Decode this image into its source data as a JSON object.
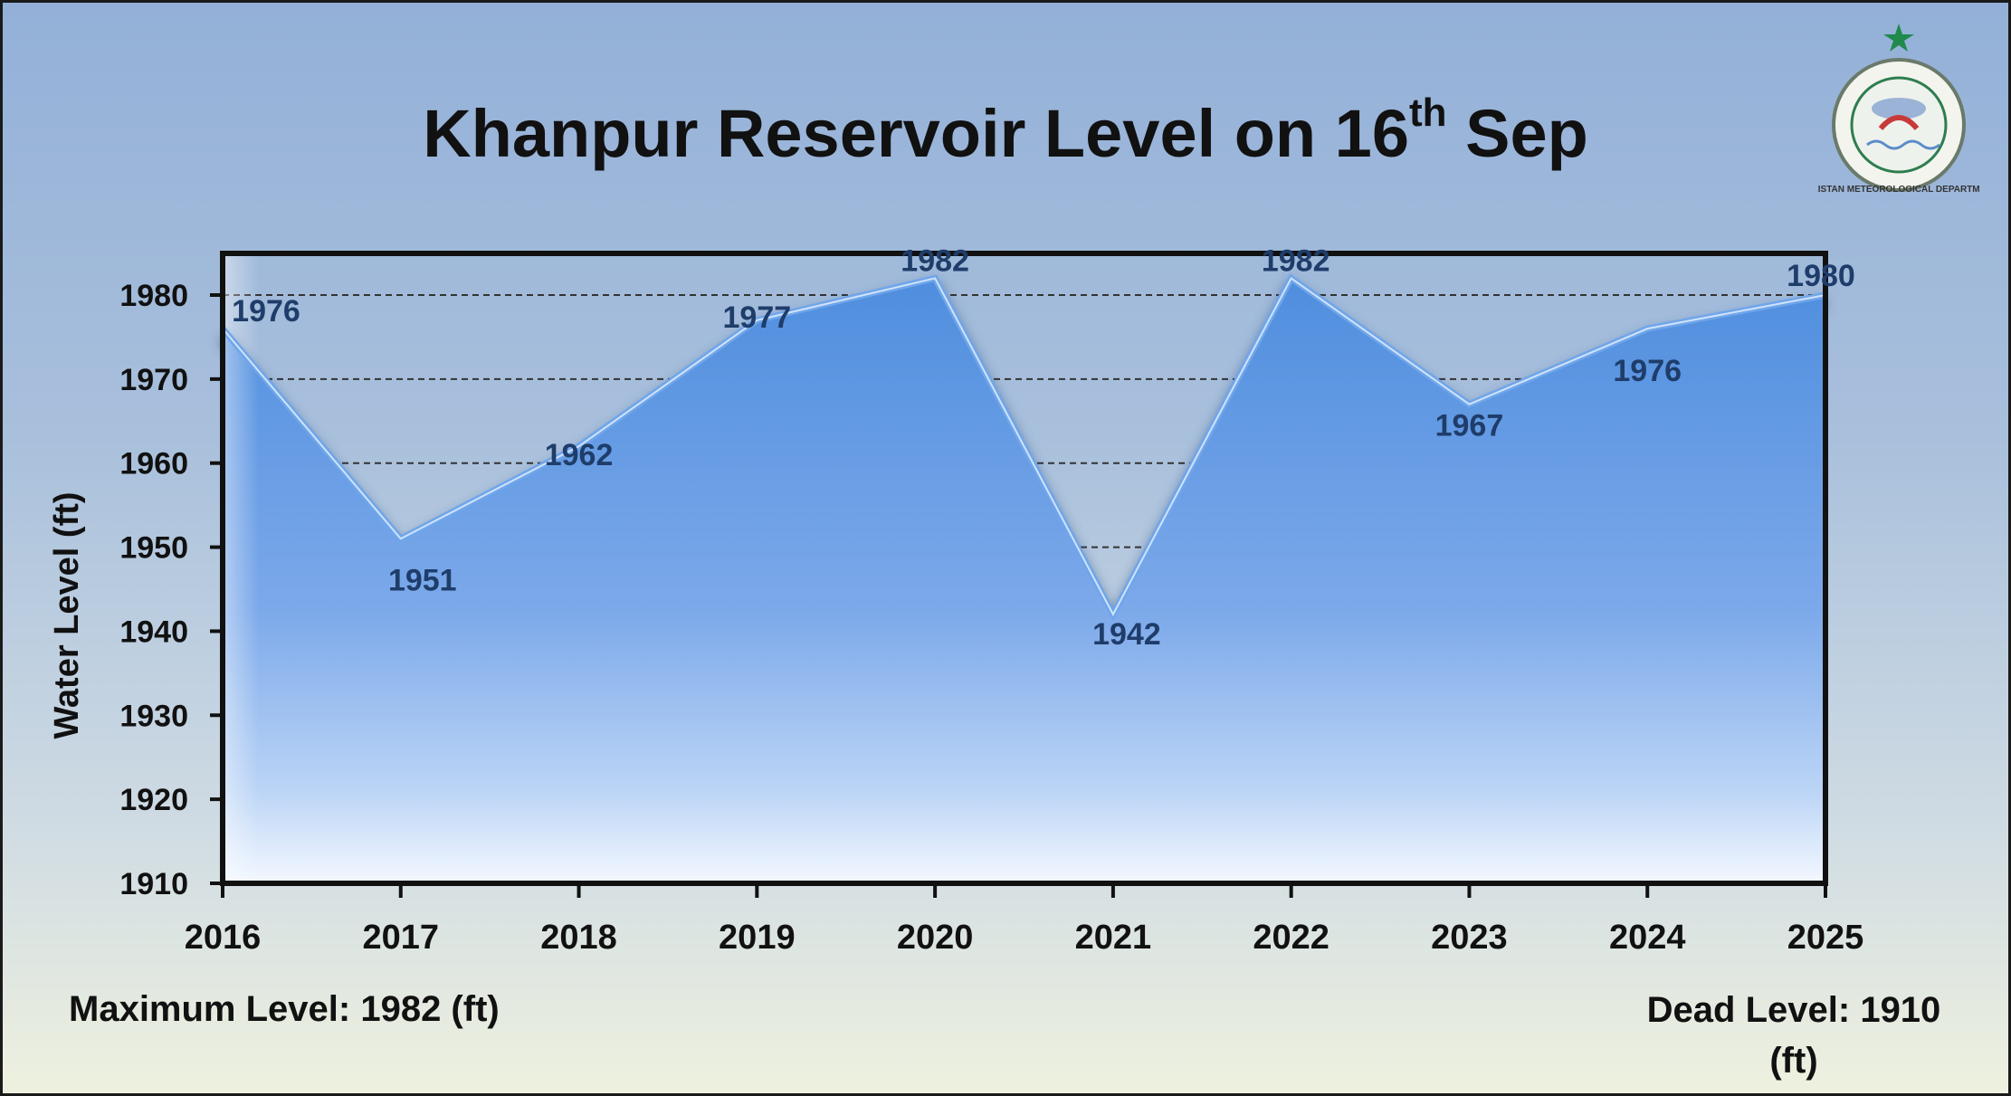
{
  "title": {
    "main": "Khanpur Reservoir Level on 16",
    "sup": "th",
    "end": "Sep"
  },
  "notes": {
    "left": "Maximum Level: 1982 (ft)",
    "right_line1": "Dead Level: 1910",
    "right_line2": "(ft)"
  },
  "logo": {
    "icon": "pakistan-meteorological-department-seal-icon",
    "text": "PAKISTAN METEOROLOGICAL DEPARTMENT",
    "colors": {
      "ring": "#2e7d4f",
      "inner": "#c73a3a",
      "star": "#1f8a4c"
    }
  },
  "colors": {
    "area_top": "#4f8ede",
    "area_bottom": "#f3f8ff",
    "line": "#6fa6ea",
    "label": "#1f3d6a"
  },
  "chart_data": {
    "type": "area",
    "title": "Khanpur Reservoir Level on 16th Sep",
    "xlabel": "",
    "ylabel": "Water Level (ft)",
    "x": [
      "2016",
      "2017",
      "2018",
      "2019",
      "2020",
      "2021",
      "2022",
      "2023",
      "2024",
      "2025"
    ],
    "series": [
      {
        "values": [
          1976,
          1951,
          1962,
          1977,
          1982,
          1942,
          1982,
          1967,
          1976,
          1980
        ]
      }
    ],
    "ylim": [
      1910,
      1980
    ],
    "yticks": [
      1910,
      1920,
      1930,
      1940,
      1950,
      1960,
      1970,
      1980
    ],
    "grid": "horizontal dashed",
    "legend": "none"
  }
}
